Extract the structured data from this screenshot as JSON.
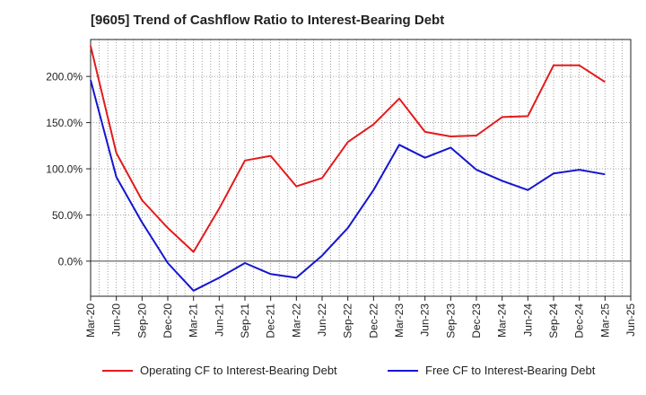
{
  "title": "[9605]  Trend of Cashflow Ratio to Interest-Bearing Debt",
  "legend": {
    "operating": "Operating CF to Interest-Bearing Debt",
    "free": "Free CF to Interest-Bearing Debt"
  },
  "colors": {
    "operating": "#e31a1c",
    "free": "#1515d0",
    "grid": "#888888",
    "axis": "#222222"
  },
  "chart_data": {
    "type": "line",
    "title": "[9605]  Trend of Cashflow Ratio to Interest-Bearing Debt",
    "xlabel": "",
    "ylabel": "",
    "grid": true,
    "legend_position": "bottom",
    "x_ticks": [
      "Mar-20",
      "Jun-20",
      "Sep-20",
      "Dec-20",
      "Mar-21",
      "Jun-21",
      "Sep-21",
      "Dec-21",
      "Mar-22",
      "Jun-22",
      "Sep-22",
      "Dec-22",
      "Mar-23",
      "Jun-23",
      "Sep-23",
      "Dec-23",
      "Mar-24",
      "Jun-24",
      "Sep-24",
      "Dec-24",
      "Mar-25",
      "Jun-25"
    ],
    "y_ticks": [
      0,
      50,
      100,
      150,
      200
    ],
    "y_tick_labels": [
      "0.0%",
      "50.0%",
      "100.0%",
      "150.0%",
      "200.0%"
    ],
    "ylim": [
      -38,
      240
    ],
    "series": [
      {
        "name": "Operating CF to Interest-Bearing Debt",
        "color": "#e31a1c",
        "points": [
          [
            "Mar-20",
            233
          ],
          [
            "Jun-20",
            117
          ],
          [
            "Sep-20",
            66
          ],
          [
            "Dec-20",
            36
          ],
          [
            "Mar-21",
            10
          ],
          [
            "Jun-21",
            57
          ],
          [
            "Sep-21",
            109
          ],
          [
            "Dec-21",
            114
          ],
          [
            "Mar-22",
            81
          ],
          [
            "Jun-22",
            90
          ],
          [
            "Sep-22",
            129
          ],
          [
            "Dec-22",
            148
          ],
          [
            "Mar-23",
            176
          ],
          [
            "Jun-23",
            140
          ],
          [
            "Sep-23",
            135
          ],
          [
            "Dec-23",
            136
          ],
          [
            "Mar-24",
            156
          ],
          [
            "Jun-24",
            157
          ],
          [
            "Sep-24",
            212
          ],
          [
            "Dec-24",
            212
          ],
          [
            "Mar-25",
            194
          ]
        ]
      },
      {
        "name": "Free CF to Interest-Bearing Debt",
        "color": "#1515d0",
        "points": [
          [
            "Mar-20",
            196
          ],
          [
            "Jun-20",
            91
          ],
          [
            "Sep-20",
            42
          ],
          [
            "Dec-20",
            -2
          ],
          [
            "Mar-21",
            -32
          ],
          [
            "Jun-21",
            -18
          ],
          [
            "Sep-21",
            -2
          ],
          [
            "Dec-21",
            -14
          ],
          [
            "Mar-22",
            -18
          ],
          [
            "Jun-22",
            6
          ],
          [
            "Sep-22",
            36
          ],
          [
            "Dec-22",
            77
          ],
          [
            "Mar-23",
            126
          ],
          [
            "Jun-23",
            112
          ],
          [
            "Sep-23",
            123
          ],
          [
            "Dec-23",
            99
          ],
          [
            "Mar-24",
            87
          ],
          [
            "Jun-24",
            77
          ],
          [
            "Sep-24",
            95
          ],
          [
            "Dec-24",
            99
          ],
          [
            "Mar-25",
            94
          ]
        ]
      }
    ]
  }
}
